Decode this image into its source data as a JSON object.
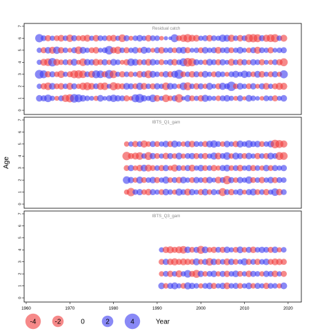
{
  "chart_data": {
    "type": "scatter",
    "ylabel": "Age",
    "x_axis": {
      "min": 1960,
      "max": 2020,
      "ticks": [
        1960,
        1970,
        1980,
        1990,
        2000,
        2010,
        2020
      ]
    },
    "y_axis": {
      "min": 0,
      "max": 7,
      "ticks": [
        0,
        1,
        2,
        3,
        4,
        5,
        6,
        7
      ]
    },
    "grid": false,
    "colors": {
      "positive": "#3a3af0",
      "negative": "#f03a3a"
    },
    "legend": {
      "placement": "bottom-left",
      "title": "Year",
      "entries": [
        {
          "label": "-4",
          "value": -4
        },
        {
          "label": "-2",
          "value": -2
        },
        {
          "label": "0",
          "value": 0
        },
        {
          "label": "2",
          "value": 2
        },
        {
          "label": "4",
          "value": 4
        }
      ]
    },
    "panels": [
      {
        "title": "Residual catch",
        "year_start": 1963,
        "year_end": 2019,
        "ages": [
          1,
          2,
          3,
          4,
          5,
          6
        ],
        "residuals": {
          "1": [
            1.1,
            0.9,
            1.6,
            0.6,
            -0.5,
            0.8,
            -1.5,
            -1.9,
            2.2,
            1.8,
            1.1,
            0.7,
            0.5,
            -0.6,
            1.2,
            0.4,
            0.9,
            1.5,
            1.0,
            0.8,
            -0.9,
            -0.4,
            1.8,
            2.3,
            1.0,
            0.6,
            1.6,
            -1.1,
            0.5,
            -1.6,
            -0.7,
            0.9,
            -2.1,
            0.3,
            1.2,
            -0.8,
            0.6,
            -1.0,
            1.4,
            0.7,
            0.5,
            -0.7,
            0.8,
            1.1,
            0.6,
            -0.5,
            0.9,
            -0.3,
            1.2,
            0.7,
            0.4,
            -0.4,
            0.8,
            0.6,
            -0.9,
            0.5,
            1.1
          ],
          "2": [
            0.6,
            -1.0,
            -1.6,
            1.2,
            -0.8,
            -1.1,
            0.7,
            -1.3,
            0.9,
            -0.6,
            -1.5,
            -1.8,
            -1.2,
            0.8,
            -1.4,
            -1.6,
            0.5,
            -1.9,
            -1.1,
            -0.9,
            1.2,
            0.9,
            -0.8,
            1.4,
            -1.2,
            0.7,
            -0.9,
            1.0,
            0.6,
            -1.6,
            1.2,
            0.8,
            -0.5,
            1.6,
            -1.8,
            0.7,
            -1.0,
            0.9,
            -0.6,
            1.3,
            0.5,
            -0.9,
            1.4,
            0.8,
            2.7,
            -0.7,
            1.2,
            0.6,
            -0.8,
            1.0,
            -0.5,
            0.9,
            -1.2,
            0.6,
            -0.9,
            -1.4,
            -1.3
          ],
          "3": [
            2.3,
            1.8,
            -1.0,
            0.9,
            -0.7,
            -1.5,
            0.6,
            -0.9,
            -1.8,
            -2.0,
            -1.6,
            0.8,
            -1.3,
            1.8,
            1.6,
            -1.0,
            2.2,
            -1.7,
            0.6,
            -1.0,
            0.7,
            -0.8,
            0.5,
            -1.2,
            0.9,
            -1.7,
            1.2,
            0.7,
            -0.6,
            1.1,
            -0.9,
            1.3,
            2.5,
            -0.8,
            0.7,
            -1.1,
            0.9,
            -0.7,
            1.2,
            0.6,
            -0.8,
            1.0,
            0.7,
            -0.5,
            0.8,
            1.3,
            0.6,
            1.5,
            0.9,
            -0.7,
            1.2,
            -1.1,
            0.6,
            -0.8,
            1.0,
            -0.6,
            1.9
          ],
          "4": [
            0.6,
            -1.3,
            -1.6,
            2.1,
            -1.2,
            -0.7,
            0.8,
            -0.9,
            1.3,
            -0.5,
            -1.6,
            1.1,
            0.9,
            -1.3,
            -0.8,
            1.0,
            -0.6,
            1.2,
            0.7,
            -0.5,
            -1.0,
            1.6,
            1.2,
            -0.9,
            0.8,
            -1.2,
            1.1,
            0.6,
            -0.8,
            0.5,
            1.0,
            -1.1,
            0.7,
            1.8,
            -2.2,
            -1.9,
            0.9,
            0.6,
            -0.7,
            1.2,
            0.8,
            -0.9,
            1.0,
            0.5,
            -1.3,
            0.7,
            -1.1,
            0.9,
            -0.6,
            1.0,
            0.7,
            -0.9,
            0.5,
            -0.6,
            0.8,
            -1.0,
            -1.8
          ],
          "5": [
            0.6,
            -0.9,
            1.1,
            -1.3,
            1.5,
            -1.0,
            0.7,
            -0.5,
            0.9,
            -1.6,
            1.2,
            0.6,
            -0.8,
            -1.1,
            0.5,
            0.8,
            2.2,
            -1.0,
            -1.5,
            0.7,
            -0.9,
            0.6,
            1.1,
            -0.6,
            1.3,
            0.7,
            -0.5,
            0.9,
            -1.1,
            0.6,
            0.8,
            -0.7,
            1.0,
            1.2,
            -0.9,
            0.5,
            0.7,
            -0.8,
            1.1,
            0.6,
            0.9,
            -1.2,
            0.7,
            1.0,
            -0.8,
            0.6,
            1.2,
            0.5,
            -0.7,
            0.9,
            -1.3,
            0.8,
            0.6,
            -1.0,
            0.5,
            0.7,
            0.9
          ],
          "6": [
            2.0,
            0.8,
            -1.0,
            0.6,
            -0.8,
            -1.2,
            0.7,
            -1.5,
            0.9,
            -0.7,
            -1.0,
            -1.3,
            0.6,
            -1.1,
            0.8,
            0.7,
            -0.9,
            -1.2,
            0.6,
            -1.6,
            0.9,
            -0.5,
            0.7,
            1.1,
            0.6,
            -1.1,
            0.8,
            0.7,
            -0.4,
            0.3,
            0.2,
            1.8,
            -0.8,
            -1.5,
            -2.0,
            -1.3,
            -1.2,
            0.6,
            0.9,
            -1.1,
            0.8,
            0.6,
            1.5,
            1.3,
            -1.4,
            0.7,
            -1.1,
            0.8,
            -1.9,
            -2.0,
            -1.8,
            0.9,
            -1.4,
            -1.7,
            -1.9,
            0.7,
            -1.3
          ]
        }
      },
      {
        "title": "IBTS_Q1_gam",
        "year_start": 1983,
        "year_end": 2019,
        "ages": [
          1,
          2,
          3,
          4,
          5
        ],
        "residuals": {
          "1": [
            -0.6,
            -2.0,
            0.7,
            1.0,
            -0.7,
            -1.1,
            0.9,
            0.6,
            -0.8,
            1.1,
            0.7,
            -0.6,
            1.4,
            0.8,
            -1.3,
            1.0,
            0.6,
            -0.9,
            1.2,
            -0.7,
            0.9,
            0.5,
            -1.8,
            0.8,
            -1.0,
            0.6,
            1.1,
            -0.5,
            0.9,
            1.3,
            -0.8,
            0.7,
            -1.0,
            0.6,
            1.6,
            -1.1,
            0.8
          ],
          "2": [
            1.6,
            1.0,
            -0.6,
            1.3,
            -0.8,
            0.7,
            1.1,
            -0.9,
            0.6,
            1.4,
            -0.7,
            0.8,
            -1.0,
            1.2,
            0.6,
            -0.8,
            1.0,
            0.7,
            -0.9,
            1.1,
            0.5,
            -1.2,
            0.8,
            -2.1,
            0.9,
            -0.7,
            1.0,
            0.6,
            1.5,
            -0.8,
            0.7,
            -1.0,
            0.6,
            1.1,
            -0.9,
            0.8,
            0.7
          ],
          "3": [
            -0.8,
            1.0,
            -0.6,
            -1.1,
            1.2,
            -1.3,
            -0.8,
            0.7,
            -0.9,
            1.0,
            -0.6,
            -1.4,
            0.8,
            -0.7,
            0.9,
            -1.2,
            0.6,
            1.1,
            -0.8,
            0.7,
            -1.0,
            -0.6,
            0.9,
            1.2,
            -0.7,
            0.8,
            -1.1,
            0.6,
            1.0,
            -0.9,
            0.7,
            -0.6,
            1.1,
            -0.8,
            0.9,
            0.6,
            1.0
          ],
          "4": [
            -2.1,
            -0.9,
            -1.3,
            -1.6,
            0.7,
            -1.8,
            1.0,
            -0.8,
            0.6,
            -1.1,
            0.9,
            -0.7,
            1.2,
            -0.6,
            0.8,
            1.0,
            -0.9,
            0.7,
            -1.0,
            0.6,
            1.4,
            -1.2,
            0.8,
            1.6,
            -0.7,
            1.3,
            0.9,
            -0.8,
            1.1,
            0.6,
            -1.0,
            0.7,
            -0.9,
            1.2,
            0.8,
            -1.8,
            -1.7
          ],
          "5": [
            -0.6,
            0.6,
            -1.0,
            0.8,
            -1.4,
            -0.7,
            0.9,
            -0.8,
            0.6,
            1.1,
            -0.9,
            1.3,
            0.7,
            -0.6,
            1.0,
            -1.1,
            0.8,
            0.6,
            -0.9,
            1.2,
            1.5,
            0.8,
            -0.7,
            1.1,
            0.6,
            -1.0,
            1.3,
            0.7,
            1.6,
            0.9,
            1.1,
            -0.8,
            0.7,
            1.2,
            -2.2,
            -1.8,
            -1.4
          ]
        }
      },
      {
        "title": "IBTS_Q3_gam",
        "year_start": 1991,
        "year_end": 2019,
        "ages": [
          1,
          2,
          3,
          4
        ],
        "residuals": {
          "1": [
            1.1,
            -0.7,
            0.9,
            1.3,
            0.6,
            -0.8,
            1.4,
            1.0,
            0.7,
            -0.6,
            0.8,
            1.1,
            -0.9,
            0.6,
            1.0,
            -1.2,
            0.7,
            0.9,
            -0.8,
            0.6,
            1.1,
            -0.7,
            0.9,
            0.6,
            -1.0,
            0.8,
            0.7,
            -0.6,
            1.2
          ],
          "2": [
            -0.6,
            0.8,
            -1.0,
            0.7,
            -1.3,
            0.6,
            1.6,
            -0.9,
            -1.8,
            1.0,
            -0.7,
            0.8,
            1.1,
            -0.6,
            0.9,
            -1.0,
            0.7,
            1.2,
            -0.8,
            0.6,
            -1.1,
            0.9,
            0.7,
            -0.6,
            1.0,
            0.8,
            -1.1,
            0.6,
            -0.9
          ],
          "3": [
            -0.8,
            1.0,
            -1.1,
            -1.4,
            -0.9,
            -1.2,
            -1.0,
            -0.8,
            1.3,
            -0.7,
            0.9,
            -1.6,
            1.1,
            -0.9,
            0.7,
            -1.2,
            1.0,
            -0.8,
            0.6,
            1.4,
            -0.9,
            0.8,
            -1.0,
            0.7,
            1.1,
            -0.8,
            -1.2,
            -1.1,
            -0.9
          ],
          "4": [
            0.6,
            -1.1,
            -1.4,
            -0.9,
            -1.3,
            -1.6,
            1.1,
            -0.8,
            0.9,
            -1.8,
            1.2,
            -0.7,
            -1.0,
            0.8,
            -0.9,
            1.1,
            0.6,
            -0.8,
            1.2,
            -0.7,
            0.9,
            -1.1,
            0.7,
            1.0,
            0.8,
            -0.9,
            1.1,
            -0.6,
            0.7
          ]
        }
      }
    ]
  }
}
